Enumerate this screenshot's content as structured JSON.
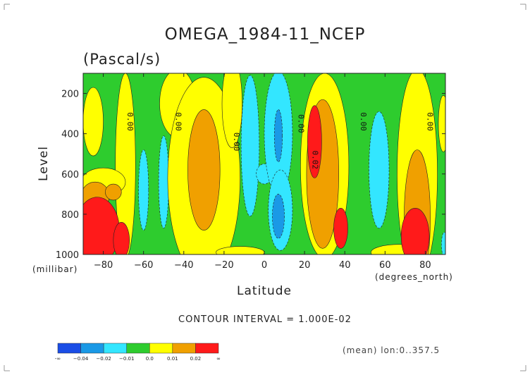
{
  "chart_data": {
    "type": "heatmap",
    "title": "OMEGA_1984-11_NCEP",
    "subtitle": "(Pascal/s)",
    "xlabel": "Latitude",
    "xunit": "(degrees_north)",
    "ylabel": "Level",
    "yunit": "(millibar)",
    "xlim": [
      -90,
      90
    ],
    "ylim": [
      1000,
      100
    ],
    "x_ticks": [
      -80,
      -60,
      -40,
      -20,
      0,
      20,
      40,
      60,
      80
    ],
    "x_tick_labels": [
      "−80",
      "−60",
      "−40",
      "−20",
      "0",
      "20",
      "40",
      "60",
      "80"
    ],
    "y_ticks": [
      200,
      400,
      600,
      800,
      1000
    ],
    "y_tick_labels": [
      "200",
      "400",
      "600",
      "800",
      "1000"
    ],
    "contour_interval_text": "CONTOUR INTERVAL = 1.000E-02",
    "contour_labels": [
      {
        "text": "0.00",
        "lat": -68,
        "lev": 340
      },
      {
        "text": "0.00",
        "lat": -44,
        "lev": 340
      },
      {
        "text": "0.00",
        "lat": -15,
        "lev": 440
      },
      {
        "text": "0.00",
        "lat": 17,
        "lev": 350
      },
      {
        "text": "0.02",
        "lat": 24,
        "lev": 530
      },
      {
        "text": "0.00",
        "lat": 48,
        "lev": 340
      },
      {
        "text": "0.00",
        "lat": 81,
        "lev": 340
      }
    ],
    "levels": {
      "colors": [
        "#1a4de6",
        "#1a99e6",
        "#33e6ff",
        "#2ecc2e",
        "#ffff00",
        "#f0a000",
        "#ff1a1a"
      ],
      "bounds": [
        "-∞",
        "−0.04",
        "−0.02",
        "−0.01",
        "0.0",
        "0.01",
        "0.02",
        "∞"
      ]
    },
    "background_level": 3,
    "regions": [
      {
        "level": 4,
        "cx": -69,
        "cy": 560,
        "rx": 5,
        "ry": 460
      },
      {
        "level": 4,
        "cx": -85,
        "cy": 340,
        "rx": 5,
        "ry": 170
      },
      {
        "level": 4,
        "cx": -80,
        "cy": 640,
        "rx": 11,
        "ry": 70
      },
      {
        "level": 5,
        "cx": -84,
        "cy": 710,
        "rx": 7,
        "ry": 70
      },
      {
        "level": 5,
        "cx": -75,
        "cy": 690,
        "rx": 4,
        "ry": 40
      },
      {
        "level": 6,
        "cx": -83,
        "cy": 880,
        "rx": 11,
        "ry": 165
      },
      {
        "level": 6,
        "cx": -71,
        "cy": 930,
        "rx": 4,
        "ry": 90
      },
      {
        "level": 2,
        "cx": -60,
        "cy": 680,
        "rx": 2.5,
        "ry": 200
      },
      {
        "level": 2,
        "cx": -50,
        "cy": 640,
        "rx": 2.5,
        "ry": 230
      },
      {
        "level": 4,
        "cx": -43,
        "cy": 250,
        "rx": 9,
        "ry": 170
      },
      {
        "level": 4,
        "cx": -30,
        "cy": 620,
        "rx": 18,
        "ry": 500
      },
      {
        "level": 5,
        "cx": -30,
        "cy": 580,
        "rx": 8,
        "ry": 300
      },
      {
        "level": 4,
        "cx": -16,
        "cy": 250,
        "rx": 5,
        "ry": 220
      },
      {
        "level": 4,
        "cx": -12,
        "cy": 990,
        "rx": 12,
        "ry": 30
      },
      {
        "level": 2,
        "cx": -7,
        "cy": 460,
        "rx": 4.5,
        "ry": 350
      },
      {
        "level": 2,
        "cx": 0,
        "cy": 600,
        "rx": 4,
        "ry": 50
      },
      {
        "level": 2,
        "cx": 7,
        "cy": 400,
        "rx": 7,
        "ry": 310
      },
      {
        "level": 2,
        "cx": 8,
        "cy": 780,
        "rx": 6,
        "ry": 200
      },
      {
        "level": 1,
        "cx": 7,
        "cy": 410,
        "rx": 2,
        "ry": 130
      },
      {
        "level": 1,
        "cx": 7,
        "cy": 810,
        "rx": 3,
        "ry": 110
      },
      {
        "level": 4,
        "cx": 30,
        "cy": 560,
        "rx": 12,
        "ry": 460
      },
      {
        "level": 5,
        "cx": 29,
        "cy": 600,
        "rx": 8,
        "ry": 370
      },
      {
        "level": 6,
        "cx": 25,
        "cy": 440,
        "rx": 3.5,
        "ry": 180
      },
      {
        "level": 6,
        "cx": 38,
        "cy": 870,
        "rx": 3.5,
        "ry": 100
      },
      {
        "level": 2,
        "cx": 57,
        "cy": 580,
        "rx": 5,
        "ry": 290
      },
      {
        "level": 4,
        "cx": 67,
        "cy": 990,
        "rx": 14,
        "ry": 40
      },
      {
        "level": 4,
        "cx": 76,
        "cy": 600,
        "rx": 10,
        "ry": 520
      },
      {
        "level": 5,
        "cx": 76,
        "cy": 820,
        "rx": 6.5,
        "ry": 340
      },
      {
        "level": 6,
        "cx": 75,
        "cy": 910,
        "rx": 7,
        "ry": 140
      },
      {
        "level": 4,
        "cx": 89,
        "cy": 350,
        "rx": 2.5,
        "ry": 140
      },
      {
        "level": 2,
        "cx": 89.5,
        "cy": 950,
        "rx": 1.5,
        "ry": 60
      }
    ]
  },
  "colorbar": {
    "colors": [
      "#1a4de6",
      "#1a99e6",
      "#33e6ff",
      "#2ecc2e",
      "#ffff00",
      "#f0a000",
      "#ff1a1a"
    ],
    "labels": [
      "-∞",
      "−0.04",
      "−0.02",
      "−0.01",
      "0.0",
      "0.01",
      "0.02",
      "∞"
    ]
  },
  "footer": {
    "mean_note": "(mean) lon:0..357.5"
  }
}
